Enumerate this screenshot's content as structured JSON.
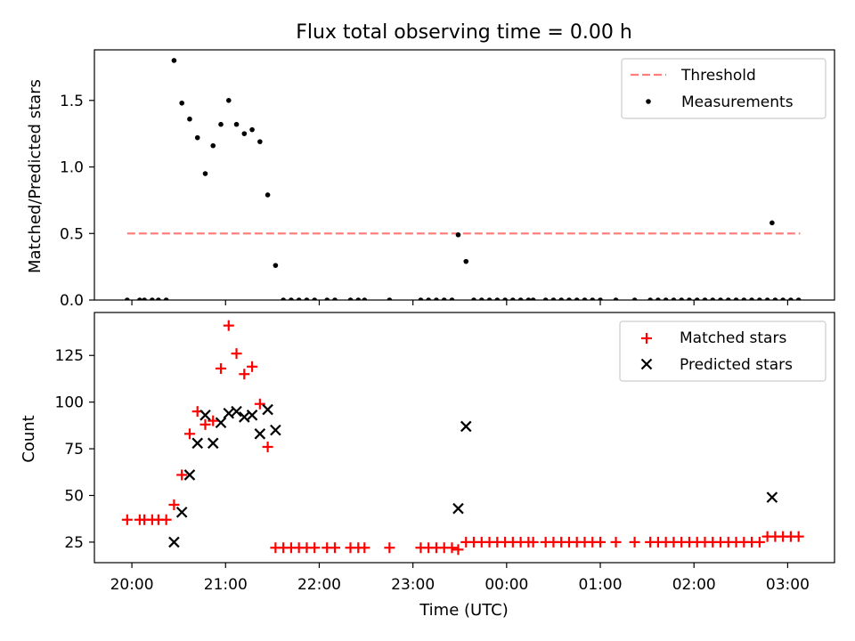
{
  "chart_data": [
    {
      "type": "scatter",
      "title": "Flux total observing time = 0.00 h",
      "xlabel": "",
      "ylabel": "Matched/Predicted stars",
      "ylim": [
        0,
        1.88
      ],
      "yticks": [
        "0.0",
        "0.5",
        "1.0",
        "1.5"
      ],
      "xlim": [
        "19:36",
        "03:30"
      ],
      "legend": "top-right",
      "grid": false,
      "threshold": {
        "name": "Threshold",
        "value": 0.5,
        "x_start": "19:57",
        "x_end": "03:08",
        "color": "#ff7f7f"
      },
      "series": [
        {
          "name": "Measurements",
          "color": "#000000",
          "points": [
            [
              "19:57",
              0
            ],
            [
              "20:05",
              0
            ],
            [
              "20:08",
              0
            ],
            [
              "20:13",
              0
            ],
            [
              "20:17",
              0
            ],
            [
              "20:22",
              0
            ],
            [
              "20:27",
              1.8
            ],
            [
              "20:32",
              1.48
            ],
            [
              "20:37",
              1.36
            ],
            [
              "20:42",
              1.22
            ],
            [
              "20:47",
              0.95
            ],
            [
              "20:52",
              1.16
            ],
            [
              "20:57",
              1.32
            ],
            [
              "21:02",
              1.5
            ],
            [
              "21:07",
              1.32
            ],
            [
              "21:12",
              1.25
            ],
            [
              "21:17",
              1.28
            ],
            [
              "21:22",
              1.19
            ],
            [
              "21:27",
              0.79
            ],
            [
              "21:32",
              0.26
            ],
            [
              "21:37",
              0
            ],
            [
              "21:42",
              0
            ],
            [
              "21:47",
              0
            ],
            [
              "21:52",
              0
            ],
            [
              "21:57",
              0
            ],
            [
              "22:05",
              0
            ],
            [
              "22:10",
              0
            ],
            [
              "22:20",
              0
            ],
            [
              "22:25",
              0
            ],
            [
              "22:29",
              0
            ],
            [
              "22:45",
              0
            ],
            [
              "23:05",
              0
            ],
            [
              "23:10",
              0
            ],
            [
              "23:15",
              0
            ],
            [
              "23:20",
              0
            ],
            [
              "23:25",
              0
            ],
            [
              "23:29",
              0.49
            ],
            [
              "23:34",
              0.29
            ],
            [
              "23:39",
              0
            ],
            [
              "23:44",
              0
            ],
            [
              "23:49",
              0
            ],
            [
              "23:54",
              0
            ],
            [
              "23:59",
              0
            ],
            [
              "00:04",
              0
            ],
            [
              "00:09",
              0
            ],
            [
              "00:14",
              0
            ],
            [
              "00:17",
              0
            ],
            [
              "00:25",
              0
            ],
            [
              "00:30",
              0
            ],
            [
              "00:35",
              0
            ],
            [
              "00:40",
              0
            ],
            [
              "00:45",
              0
            ],
            [
              "00:50",
              0
            ],
            [
              "00:55",
              0
            ],
            [
              "01:00",
              0
            ],
            [
              "01:10",
              0
            ],
            [
              "01:22",
              0
            ],
            [
              "01:32",
              0
            ],
            [
              "01:37",
              0
            ],
            [
              "01:42",
              0
            ],
            [
              "01:47",
              0
            ],
            [
              "01:52",
              0
            ],
            [
              "01:57",
              0
            ],
            [
              "02:02",
              0
            ],
            [
              "02:07",
              0
            ],
            [
              "02:12",
              0
            ],
            [
              "02:17",
              0
            ],
            [
              "02:22",
              0
            ],
            [
              "02:27",
              0
            ],
            [
              "02:32",
              0
            ],
            [
              "02:37",
              0
            ],
            [
              "02:42",
              0
            ],
            [
              "02:47",
              0
            ],
            [
              "02:52",
              0
            ],
            [
              "02:57",
              0
            ],
            [
              "03:02",
              0
            ],
            [
              "03:07",
              0
            ],
            [
              "02:50",
              0.58
            ]
          ]
        }
      ]
    },
    {
      "type": "scatter",
      "title": "",
      "xlabel": "Time (UTC)",
      "ylabel": "Count",
      "ylim": [
        14,
        148
      ],
      "yticks": [
        "25",
        "50",
        "75",
        "100",
        "125"
      ],
      "xlim": [
        "19:36",
        "03:30"
      ],
      "xticks": [
        "20:00",
        "21:00",
        "22:00",
        "23:00",
        "00:00",
        "01:00",
        "02:00",
        "03:00"
      ],
      "legend": "top-right",
      "grid": false,
      "series": [
        {
          "name": "Matched stars",
          "marker": "plus",
          "color": "#ff0000",
          "points": [
            [
              "19:57",
              37
            ],
            [
              "20:05",
              37
            ],
            [
              "20:08",
              37
            ],
            [
              "20:13",
              37
            ],
            [
              "20:17",
              37
            ],
            [
              "20:22",
              37
            ],
            [
              "20:27",
              45
            ],
            [
              "20:32",
              61
            ],
            [
              "20:37",
              83
            ],
            [
              "20:42",
              95
            ],
            [
              "20:47",
              88
            ],
            [
              "20:52",
              90
            ],
            [
              "20:57",
              118
            ],
            [
              "21:02",
              141
            ],
            [
              "21:07",
              126
            ],
            [
              "21:12",
              115
            ],
            [
              "21:17",
              119
            ],
            [
              "21:22",
              99
            ],
            [
              "21:27",
              76
            ],
            [
              "21:32",
              22
            ],
            [
              "21:37",
              22
            ],
            [
              "21:42",
              22
            ],
            [
              "21:47",
              22
            ],
            [
              "21:52",
              22
            ],
            [
              "21:57",
              22
            ],
            [
              "22:05",
              22
            ],
            [
              "22:10",
              22
            ],
            [
              "22:20",
              22
            ],
            [
              "22:25",
              22
            ],
            [
              "22:29",
              22
            ],
            [
              "22:45",
              22
            ],
            [
              "23:05",
              22
            ],
            [
              "23:10",
              22
            ],
            [
              "23:15",
              22
            ],
            [
              "23:20",
              22
            ],
            [
              "23:25",
              22
            ],
            [
              "23:29",
              21
            ],
            [
              "23:34",
              25
            ],
            [
              "23:39",
              25
            ],
            [
              "23:44",
              25
            ],
            [
              "23:49",
              25
            ],
            [
              "23:54",
              25
            ],
            [
              "23:59",
              25
            ],
            [
              "00:04",
              25
            ],
            [
              "00:09",
              25
            ],
            [
              "00:14",
              25
            ],
            [
              "00:17",
              25
            ],
            [
              "00:25",
              25
            ],
            [
              "00:30",
              25
            ],
            [
              "00:35",
              25
            ],
            [
              "00:40",
              25
            ],
            [
              "00:45",
              25
            ],
            [
              "00:50",
              25
            ],
            [
              "00:55",
              25
            ],
            [
              "01:00",
              25
            ],
            [
              "01:10",
              25
            ],
            [
              "01:22",
              25
            ],
            [
              "01:32",
              25
            ],
            [
              "01:37",
              25
            ],
            [
              "01:42",
              25
            ],
            [
              "01:47",
              25
            ],
            [
              "01:52",
              25
            ],
            [
              "01:57",
              25
            ],
            [
              "02:02",
              25
            ],
            [
              "02:07",
              25
            ],
            [
              "02:12",
              25
            ],
            [
              "02:17",
              25
            ],
            [
              "02:22",
              25
            ],
            [
              "02:27",
              25
            ],
            [
              "02:32",
              25
            ],
            [
              "02:37",
              25
            ],
            [
              "02:42",
              25
            ],
            [
              "02:47",
              28
            ],
            [
              "02:52",
              28
            ],
            [
              "02:57",
              28
            ],
            [
              "03:02",
              28
            ],
            [
              "03:07",
              28
            ]
          ]
        },
        {
          "name": "Predicted stars",
          "marker": "x",
          "color": "#000000",
          "points": [
            [
              "20:27",
              25
            ],
            [
              "20:32",
              41
            ],
            [
              "20:37",
              61
            ],
            [
              "20:42",
              78
            ],
            [
              "20:47",
              93
            ],
            [
              "20:52",
              78
            ],
            [
              "20:57",
              89
            ],
            [
              "21:02",
              94
            ],
            [
              "21:07",
              95
            ],
            [
              "21:12",
              92
            ],
            [
              "21:17",
              93
            ],
            [
              "21:22",
              83
            ],
            [
              "21:27",
              96
            ],
            [
              "21:32",
              85
            ],
            [
              "23:29",
              43
            ],
            [
              "23:34",
              87
            ],
            [
              "02:50",
              49
            ]
          ]
        }
      ]
    }
  ]
}
